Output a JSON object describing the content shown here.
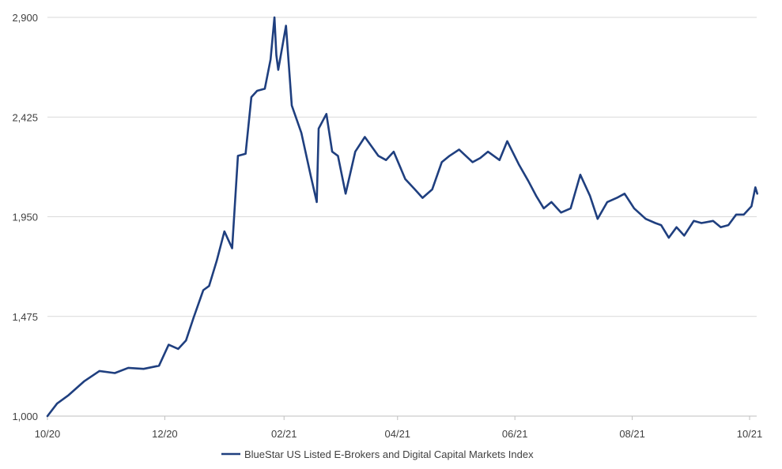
{
  "chart_data": {
    "type": "line",
    "title": "",
    "xlabel": "",
    "ylabel": "",
    "ylim": [
      1000,
      2900
    ],
    "y_ticks": [
      "1,000",
      "1,475",
      "1,950",
      "2,425",
      "2,900"
    ],
    "x_ticks": [
      "10/20",
      "12/20",
      "02/21",
      "04/21",
      "06/21",
      "08/21",
      "10/21"
    ],
    "grid": "horizontal",
    "legend_position": "bottom",
    "line_color": "#1F3F7F",
    "series": [
      {
        "name": "BlueStar US Listed E-Brokers and Digital Capital Markets Index",
        "x": [
          "2020-10-01",
          "2020-10-06",
          "2020-10-12",
          "2020-10-20",
          "2020-10-28",
          "2020-11-05",
          "2020-11-12",
          "2020-11-20",
          "2020-11-28",
          "2020-12-03",
          "2020-12-08",
          "2020-12-12",
          "2020-12-16",
          "2020-12-21",
          "2020-12-24",
          "2020-12-28",
          "2021-01-01",
          "2021-01-05",
          "2021-01-08",
          "2021-01-12",
          "2021-01-15",
          "2021-01-18",
          "2021-01-22",
          "2021-01-25",
          "2021-01-27",
          "2021-01-28",
          "2021-01-29",
          "2021-02-02",
          "2021-02-05",
          "2021-02-10",
          "2021-02-15",
          "2021-02-18",
          "2021-02-19",
          "2021-02-23",
          "2021-02-26",
          "2021-03-01",
          "2021-03-05",
          "2021-03-10",
          "2021-03-15",
          "2021-03-22",
          "2021-03-26",
          "2021-03-30",
          "2021-04-05",
          "2021-04-10",
          "2021-04-14",
          "2021-04-19",
          "2021-04-24",
          "2021-04-28",
          "2021-05-03",
          "2021-05-10",
          "2021-05-14",
          "2021-05-18",
          "2021-05-24",
          "2021-05-28",
          "2021-06-03",
          "2021-06-08",
          "2021-06-12",
          "2021-06-16",
          "2021-06-20",
          "2021-06-25",
          "2021-06-30",
          "2021-07-05",
          "2021-07-10",
          "2021-07-14",
          "2021-07-19",
          "2021-07-24",
          "2021-07-28",
          "2021-08-02",
          "2021-08-08",
          "2021-08-13",
          "2021-08-16",
          "2021-08-20",
          "2021-08-24",
          "2021-08-28",
          "2021-09-02",
          "2021-09-06",
          "2021-09-12",
          "2021-09-16",
          "2021-09-20",
          "2021-09-24",
          "2021-09-28",
          "2021-10-02",
          "2021-10-04",
          "2021-10-05"
        ],
        "values": [
          1000,
          1060,
          1100,
          1165,
          1215,
          1205,
          1230,
          1225,
          1240,
          1340,
          1320,
          1360,
          1470,
          1600,
          1620,
          1740,
          1880,
          1800,
          2240,
          2250,
          2520,
          2550,
          2560,
          2700,
          2900,
          2720,
          2650,
          2860,
          2480,
          2350,
          2140,
          2020,
          2370,
          2440,
          2260,
          2240,
          2060,
          2260,
          2330,
          2240,
          2220,
          2260,
          2130,
          2080,
          2040,
          2080,
          2210,
          2240,
          2270,
          2210,
          2230,
          2260,
          2220,
          2310,
          2200,
          2120,
          2050,
          1990,
          2020,
          1970,
          1990,
          2150,
          2050,
          1940,
          2020,
          2040,
          2060,
          1990,
          1940,
          1920,
          1910,
          1850,
          1900,
          1860,
          1930,
          1920,
          1930,
          1900,
          1910,
          1960,
          1960,
          2000,
          2090,
          2060
        ]
      }
    ]
  }
}
